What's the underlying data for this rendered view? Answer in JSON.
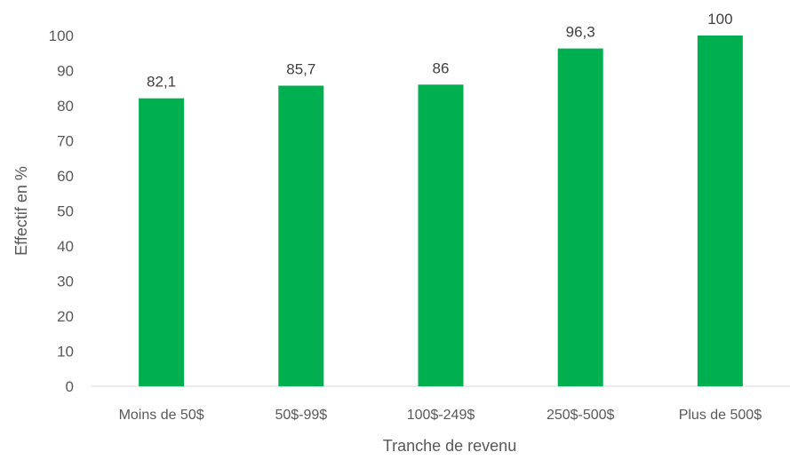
{
  "chart_data": {
    "type": "bar",
    "categories": [
      "Moins de 50$",
      "50$-99$",
      "100$-249$",
      "250$-500$",
      "Plus de 500$"
    ],
    "values": [
      82.1,
      85.7,
      86,
      96.3,
      100
    ],
    "data_labels": [
      "82,1",
      "85,7",
      "86",
      "96,3",
      "100"
    ],
    "xlabel": "Tranche de revenu",
    "ylabel": "Effectif en %",
    "ylim": [
      0,
      100
    ],
    "yticks": [
      0,
      10,
      20,
      30,
      40,
      50,
      60,
      70,
      80,
      90,
      100
    ],
    "grid": false,
    "bar_color": "#00b050"
  }
}
